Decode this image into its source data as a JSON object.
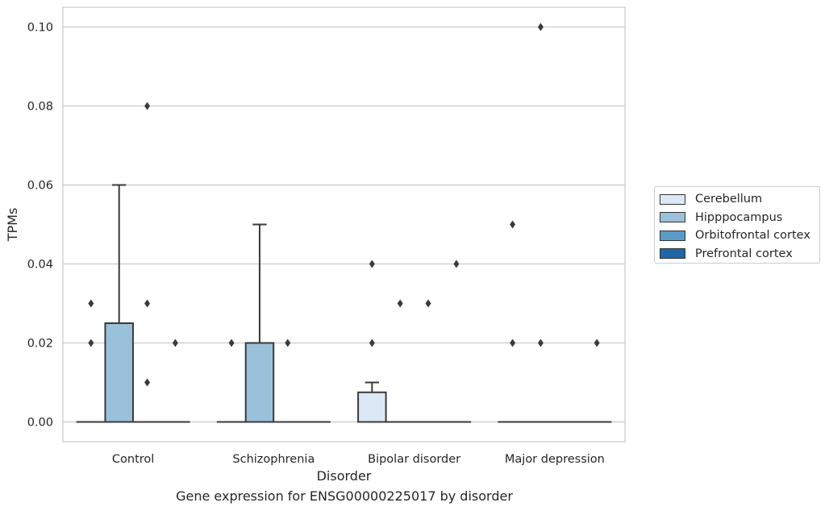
{
  "chart_data": {
    "type": "box",
    "title": "",
    "caption": "Gene expression for ENSG00000225017 by disorder",
    "xlabel": "Disorder",
    "ylabel": "TPMs",
    "ylim": [
      -0.005,
      0.105
    ],
    "yticks": [
      0.0,
      0.02,
      0.04,
      0.06,
      0.08,
      0.1
    ],
    "ytick_labels": [
      "0.00",
      "0.02",
      "0.04",
      "0.06",
      "0.08",
      "0.10"
    ],
    "grid": true,
    "legend_position": "right",
    "categories": [
      "Control",
      "Schizophrenia",
      "Bipolar disorder",
      "Major depression"
    ],
    "series": [
      {
        "name": "Cerebellum",
        "color": "#dbe9f6",
        "boxes": [
          {
            "q1": 0,
            "median": 0,
            "q3": 0,
            "whisker_low": 0,
            "whisker_high": 0,
            "outliers": [
              0.02,
              0.03
            ]
          },
          {
            "q1": 0,
            "median": 0,
            "q3": 0,
            "whisker_low": 0,
            "whisker_high": 0,
            "outliers": [
              0.02
            ]
          },
          {
            "q1": 0,
            "median": 0,
            "q3": 0.0075,
            "whisker_low": 0,
            "whisker_high": 0.01,
            "outliers": [
              0.02,
              0.04
            ]
          },
          {
            "q1": 0,
            "median": 0,
            "q3": 0,
            "whisker_low": 0,
            "whisker_high": 0,
            "outliers": [
              0.02,
              0.05
            ]
          }
        ]
      },
      {
        "name": "Hipppocampus",
        "color": "#9ac1d9",
        "boxes": [
          {
            "q1": 0,
            "median": 0,
            "q3": 0.025,
            "whisker_low": 0,
            "whisker_high": 0.06,
            "outliers": []
          },
          {
            "q1": 0,
            "median": 0,
            "q3": 0.02,
            "whisker_low": 0,
            "whisker_high": 0.05,
            "outliers": []
          },
          {
            "q1": 0,
            "median": 0,
            "q3": 0,
            "whisker_low": 0,
            "whisker_high": 0,
            "outliers": [
              0.03
            ]
          },
          {
            "q1": 0,
            "median": 0,
            "q3": 0,
            "whisker_low": 0,
            "whisker_high": 0,
            "outliers": [
              0.02,
              0.1
            ]
          }
        ]
      },
      {
        "name": "Orbitofrontal cortex",
        "color": "#5a9ac6",
        "boxes": [
          {
            "q1": 0,
            "median": 0,
            "q3": 0,
            "whisker_low": 0,
            "whisker_high": 0,
            "outliers": [
              0.01,
              0.03,
              0.08
            ]
          },
          {
            "q1": 0,
            "median": 0,
            "q3": 0,
            "whisker_low": 0,
            "whisker_high": 0,
            "outliers": [
              0.02
            ]
          },
          {
            "q1": 0,
            "median": 0,
            "q3": 0,
            "whisker_low": 0,
            "whisker_high": 0,
            "outliers": [
              0.03
            ]
          },
          {
            "q1": 0,
            "median": 0,
            "q3": 0,
            "whisker_low": 0,
            "whisker_high": 0,
            "outliers": []
          }
        ]
      },
      {
        "name": "Prefrontal cortex",
        "color": "#2066a8",
        "boxes": [
          {
            "q1": 0,
            "median": 0,
            "q3": 0,
            "whisker_low": 0,
            "whisker_high": 0,
            "outliers": [
              0.02
            ]
          },
          {
            "q1": 0,
            "median": 0,
            "q3": 0,
            "whisker_low": 0,
            "whisker_high": 0,
            "outliers": []
          },
          {
            "q1": 0,
            "median": 0,
            "q3": 0,
            "whisker_low": 0,
            "whisker_high": 0,
            "outliers": [
              0.04
            ]
          },
          {
            "q1": 0,
            "median": 0,
            "q3": 0,
            "whisker_low": 0,
            "whisker_high": 0,
            "outliers": [
              0.02
            ]
          }
        ]
      }
    ]
  }
}
